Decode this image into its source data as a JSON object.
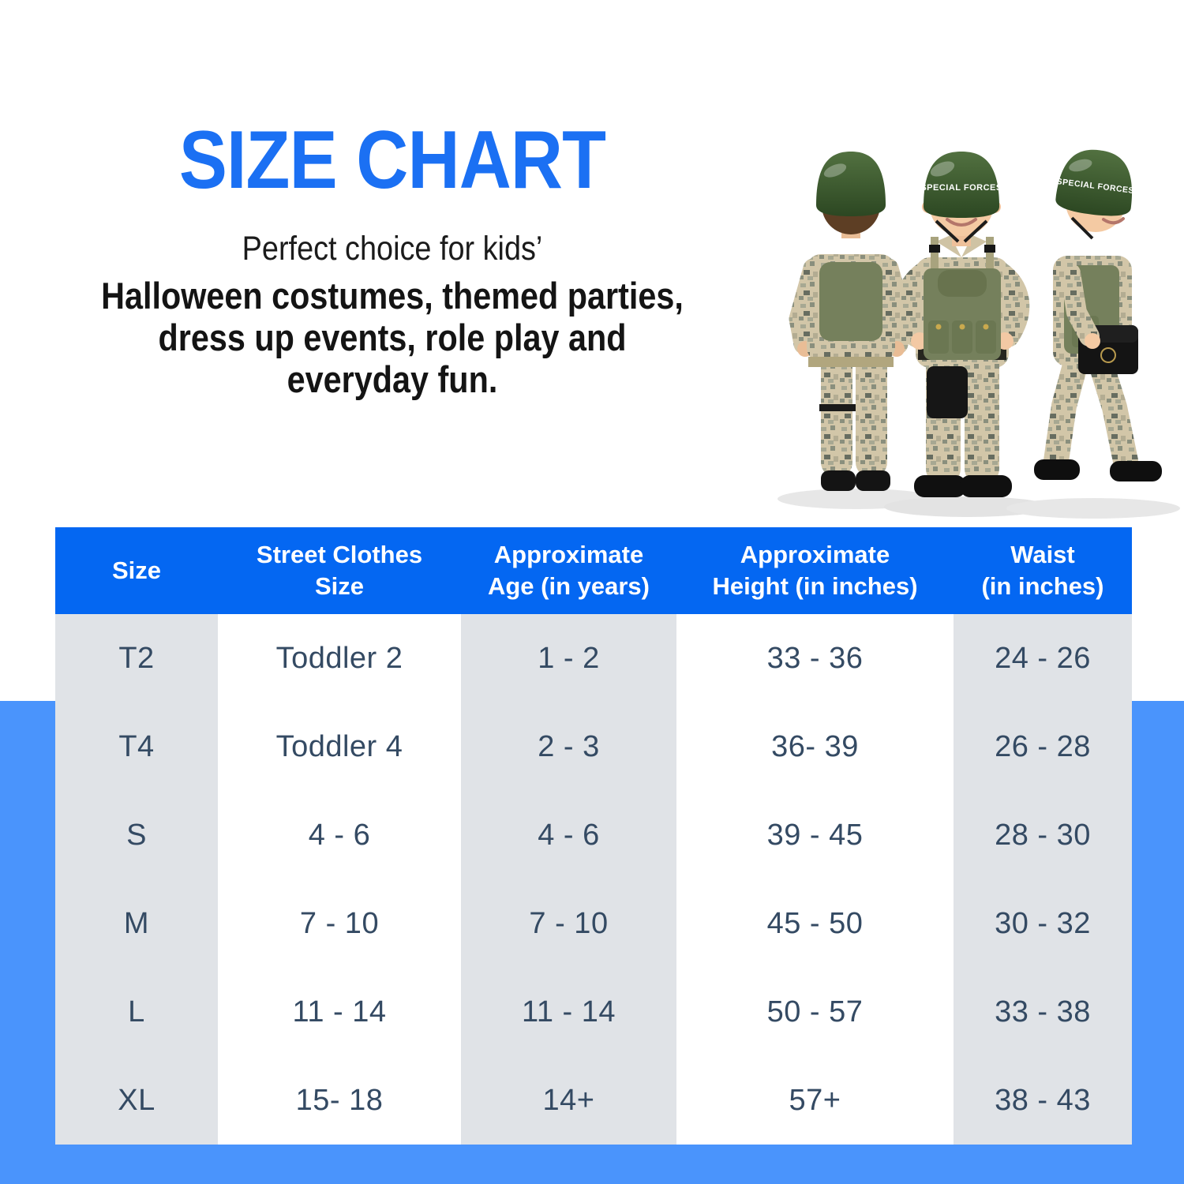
{
  "colors": {
    "title_blue": "#1b70f3",
    "header_blue": "#0467f2",
    "band_blue": "#4a94fc",
    "stripe_gray": "#e0e3e7",
    "table_text": "#344a63"
  },
  "hero": {
    "title": "SIZE CHART",
    "lead": "Perfect choice for kids’",
    "bold_lines": [
      "Halloween costumes, themed parties,",
      "dress up events, role play and",
      "everyday fun."
    ]
  },
  "photo": {
    "alt": "Three kids wearing camouflage special forces costumes with green helmets",
    "helmet_text": "SPECIAL FORCES"
  },
  "chart_data": {
    "type": "table",
    "title": "SIZE CHART",
    "columns": [
      "Size",
      "Street Clothes\nSize",
      "Approximate\nAge (in years)",
      "Approximate\nHeight (in inches)",
      "Waist\n(in inches)"
    ],
    "rows": [
      [
        "T2",
        "Toddler 2",
        "1 - 2",
        "33 - 36",
        "24 - 26"
      ],
      [
        "T4",
        "Toddler 4",
        "2 - 3",
        "36- 39",
        "26 - 28"
      ],
      [
        "S",
        "4 - 6",
        "4 - 6",
        "39 - 45",
        "28 - 30"
      ],
      [
        "M",
        "7 - 10",
        "7 - 10",
        "45 - 50",
        "30 - 32"
      ],
      [
        "L",
        "11 - 14",
        "11 - 14",
        "50 - 57",
        "33 - 38"
      ],
      [
        "XL",
        "15- 18",
        "14+",
        "57+",
        "38 - 43"
      ]
    ]
  }
}
